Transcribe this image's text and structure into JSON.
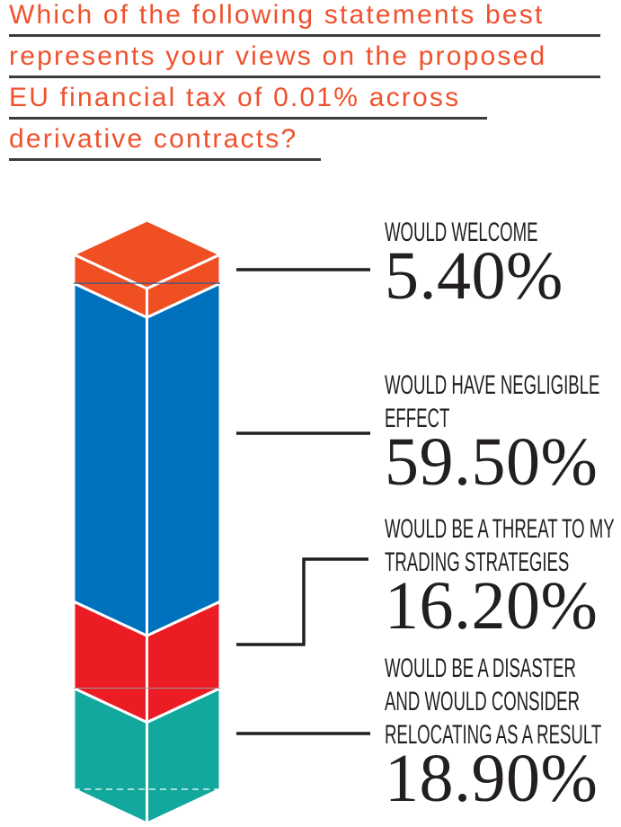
{
  "title": {
    "lines": [
      "Which of the following statements best",
      "represents your views on the proposed",
      "EU financial tax of 0.01% across",
      "derivative contracts?"
    ]
  },
  "labels": [
    {
      "lines": [
        "WOULD WELCOME"
      ],
      "value": "5.40%"
    },
    {
      "lines": [
        "WOULD HAVE NEGLIGIBLE",
        "EFFECT"
      ],
      "value": "59.50%"
    },
    {
      "lines": [
        "WOULD BE A THREAT TO MY",
        "TRADING STRATEGIES"
      ],
      "value": "16.20%"
    },
    {
      "lines": [
        "WOULD BE A DISASTER",
        "AND WOULD CONSIDER",
        "RELOCATING AS A RESULT"
      ],
      "value": "18.90%"
    }
  ],
  "chart_data": {
    "type": "bar",
    "subtype": "3d-stacked-column",
    "title": "Which of the following statements best represents your views on the proposed EU financial tax of 0.01% across derivative contracts?",
    "unit": "%",
    "total": 100,
    "grid": false,
    "legend_position": "right-callouts",
    "categories": [
      "Would welcome",
      "Would have negligible effect",
      "Would be a threat to my trading strategies",
      "Would be a disaster and would consider relocating as a result"
    ],
    "values": [
      5.4,
      59.5,
      16.2,
      18.9
    ],
    "segments": [
      {
        "label": "WOULD WELCOME",
        "value": 5.4,
        "display_value": "5.40%",
        "color": "#f04e23"
      },
      {
        "label": "WOULD HAVE NEGLIGIBLE EFFECT",
        "value": 59.5,
        "display_value": "59.50%",
        "color": "#0071bc"
      },
      {
        "label": "WOULD BE A THREAT TO MY TRADING STRATEGIES",
        "value": 16.2,
        "display_value": "16.20%",
        "color": "#ec1c24"
      },
      {
        "label": "WOULD BE A DISASTER AND WOULD CONSIDER RELOCATING AS A RESULT",
        "value": 18.9,
        "display_value": "18.90%",
        "color": "#12a89d"
      }
    ]
  },
  "colors": {
    "title_text": "#f0512d",
    "title_underline": "#3c3c3b",
    "label_text": "#231f20",
    "connector": "#231f20",
    "separator": "#ffffff",
    "hidden_edge_blue": "#2a5a8f",
    "hidden_edge_gray": "#999999",
    "background": "#ffffff"
  }
}
